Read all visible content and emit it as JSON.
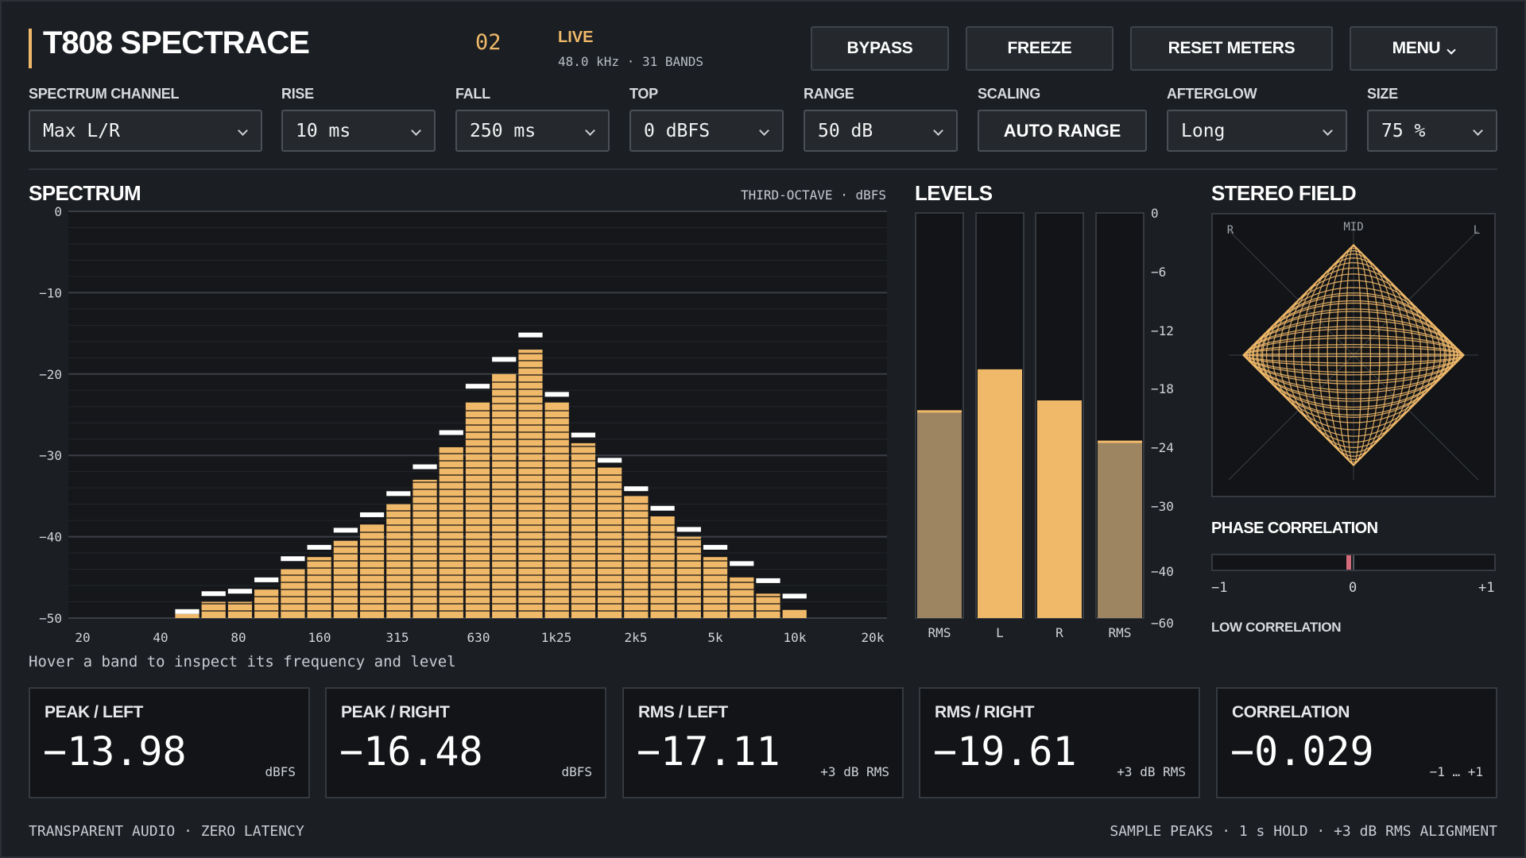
{
  "header": {
    "title": "T808 SPECTRACE",
    "preset_number": "02",
    "status": "LIVE",
    "status_sub": "48.0 kHz · 31 BANDS",
    "buttons": {
      "bypass": "BYPASS",
      "freeze": "FREEZE",
      "reset": "RESET METERS",
      "menu": "MENU"
    }
  },
  "controls": {
    "channel": {
      "label": "SPECTRUM CHANNEL",
      "value": "Max L/R"
    },
    "rise": {
      "label": "RISE",
      "value": "10 ms"
    },
    "fall": {
      "label": "FALL",
      "value": "250 ms"
    },
    "top": {
      "label": "TOP",
      "value": "0 dBFS"
    },
    "range": {
      "label": "RANGE",
      "value": "50 dB"
    },
    "scaling": {
      "label": "SCALING",
      "value": "AUTO RANGE"
    },
    "afterglow": {
      "label": "AFTERGLOW",
      "value": "Long"
    },
    "size": {
      "label": "SIZE",
      "value": "75 %"
    }
  },
  "spectrum": {
    "title": "SPECTRUM",
    "subtitle": "THIRD-OCTAVE · dBFS",
    "hint": "Hover a band to inspect its frequency and level"
  },
  "levels": {
    "title": "LEVELS"
  },
  "stereo": {
    "title": "STEREO FIELD",
    "labels": {
      "left": "L",
      "right": "R",
      "mid": "MID"
    },
    "phase_title": "PHASE CORRELATION",
    "phase_ticks": [
      "−1",
      "0",
      "+1"
    ],
    "phase_value": -0.029,
    "status": "LOW CORRELATION"
  },
  "readouts": [
    {
      "label": "PEAK / LEFT",
      "value": "−13.98",
      "unit": "dBFS"
    },
    {
      "label": "PEAK / RIGHT",
      "value": "−16.48",
      "unit": "dBFS"
    },
    {
      "label": "RMS / LEFT",
      "value": "−17.11",
      "unit": "+3 dB RMS"
    },
    {
      "label": "RMS / RIGHT",
      "value": "−19.61",
      "unit": "+3 dB RMS"
    },
    {
      "label": "CORRELATION",
      "value": "−0.029",
      "unit": "−1 … +1"
    }
  ],
  "footer": {
    "left": "TRANSPARENT AUDIO · ZERO LATENCY",
    "right": "SAMPLE PEAKS · 1 s HOLD · +3 dB RMS ALIGNMENT"
  },
  "colors": {
    "accent": "#f0b96a",
    "rms": "#9e8562",
    "background": "#1b1e22",
    "panel": "#121417",
    "peak_hold": "#ffffff",
    "phase_marker": "#d36b7a"
  },
  "chart_data": [
    {
      "type": "bar",
      "title": "SPECTRUM",
      "subtitle": "THIRD-OCTAVE · dBFS",
      "y_ticks": [
        "0",
        "−10",
        "−20",
        "−30",
        "−40",
        "−50"
      ],
      "ylim": [
        -50,
        0
      ],
      "x_ticks": [
        "20",
        "40",
        "80",
        "160",
        "315",
        "630",
        "1k25",
        "2k5",
        "5k",
        "10k",
        "20k"
      ],
      "bands": 31,
      "values": [
        -50,
        -50,
        -50,
        -50,
        -49.5,
        -48,
        -48,
        -46.5,
        -44,
        -42.5,
        -40.5,
        -38.5,
        -36,
        -33,
        -29,
        -23.5,
        -20,
        -17,
        -23.5,
        -28.5,
        -31.5,
        -35,
        -37.5,
        -40,
        -42.5,
        -45,
        -47,
        -49,
        -50,
        -50,
        -50
      ],
      "peaks": [
        -50,
        -50,
        -50,
        -50,
        -49.2,
        -47,
        -46.7,
        -45.3,
        -42.7,
        -41.3,
        -39.2,
        -37.3,
        -34.7,
        -31.4,
        -27.2,
        -21.5,
        -18.2,
        -15.2,
        -22.5,
        -27.5,
        -30.6,
        -34.1,
        -36.5,
        -39.1,
        -41.3,
        -43.3,
        -45.4,
        -47.3,
        -50,
        -50,
        -50
      ]
    },
    {
      "type": "bar",
      "title": "LEVELS",
      "categories": [
        "RMS",
        "L",
        "R",
        "RMS"
      ],
      "values": [
        -20.3,
        -16.1,
        -19.3,
        -23.4
      ],
      "y_ticks": [
        "0",
        "−6",
        "−12",
        "−18",
        "−24",
        "−30",
        "−40",
        "−60"
      ],
      "ylim": [
        -60,
        0
      ]
    }
  ]
}
